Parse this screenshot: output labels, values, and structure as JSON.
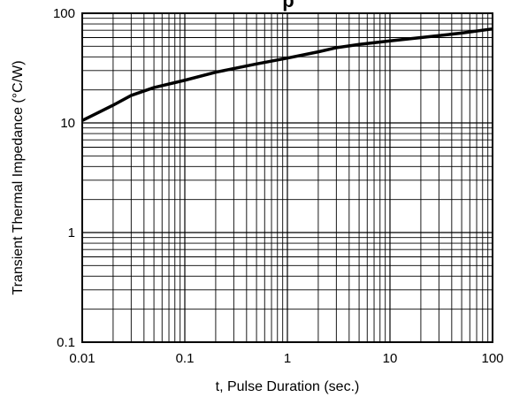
{
  "chart_data": {
    "type": "line",
    "title": "p",
    "xlabel": "t, Pulse Duration (sec.)",
    "ylabel": "Transient Thermal Impedance (°C/W)",
    "x_scale": "log",
    "y_scale": "log",
    "xlim": [
      0.01,
      100
    ],
    "ylim": [
      0.1,
      100
    ],
    "x_ticks": [
      0.01,
      0.1,
      1,
      10,
      100
    ],
    "x_tick_labels": [
      "0.01",
      "0.1",
      "1",
      "10",
      "100"
    ],
    "y_ticks": [
      0.1,
      1,
      10,
      100
    ],
    "y_tick_labels": [
      "0.1",
      "1",
      "10",
      "100"
    ],
    "grid": true,
    "series": [
      {
        "x": [
          0.01,
          0.02,
          0.03,
          0.05,
          0.1,
          0.2,
          0.5,
          1,
          2,
          3,
          5,
          10,
          20,
          50,
          100
        ],
        "y": [
          10.5,
          14.5,
          17.8,
          21.0,
          24.5,
          29.0,
          34.5,
          39.0,
          44.5,
          48.5,
          52.0,
          56.0,
          60.0,
          66.0,
          72.0
        ]
      }
    ],
    "colors": {
      "line": "#000000",
      "grid": "#000000",
      "background": "#ffffff"
    }
  }
}
